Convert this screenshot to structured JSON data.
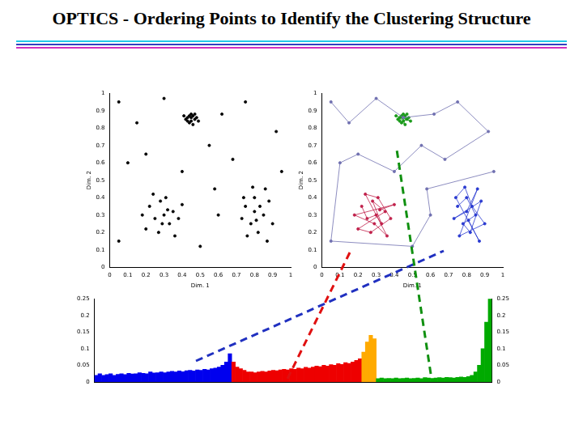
{
  "title": "OPTICS - Ordering Points to Identify the Clustering Structure",
  "chart_data": [
    {
      "type": "scatter",
      "xlabel": "Dim. 1",
      "ylabel": "Dim. 2",
      "xlim": [
        0,
        1
      ],
      "xticks": [
        0,
        0.1,
        0.2,
        0.3,
        0.4,
        0.5,
        0.6,
        0.7,
        0.8,
        0.9,
        1
      ],
      "ylim": [
        0,
        1
      ],
      "yticks": [
        0,
        0.1,
        0.2,
        0.3,
        0.4,
        0.5,
        0.6,
        0.7,
        0.8,
        0.9,
        1
      ],
      "grid": false,
      "series": [
        {
          "color": "#000000",
          "marker": "circle",
          "points": [
            [
              0.43,
              0.86
            ],
            [
              0.45,
              0.88
            ],
            [
              0.47,
              0.85
            ],
            [
              0.44,
              0.83
            ],
            [
              0.46,
              0.87
            ],
            [
              0.42,
              0.85
            ],
            [
              0.48,
              0.86
            ],
            [
              0.45,
              0.84
            ],
            [
              0.44,
              0.87
            ],
            [
              0.46,
              0.82
            ],
            [
              0.43,
              0.84
            ],
            [
              0.47,
              0.88
            ],
            [
              0.45,
              0.86
            ],
            [
              0.49,
              0.84
            ],
            [
              0.41,
              0.87
            ],
            [
              0.22,
              0.35
            ],
            [
              0.25,
              0.28
            ],
            [
              0.3,
              0.3
            ],
            [
              0.33,
              0.25
            ],
            [
              0.28,
              0.38
            ],
            [
              0.35,
              0.32
            ],
            [
              0.2,
              0.22
            ],
            [
              0.27,
              0.2
            ],
            [
              0.38,
              0.28
            ],
            [
              0.31,
              0.4
            ],
            [
              0.24,
              0.42
            ],
            [
              0.36,
              0.18
            ],
            [
              0.29,
              0.25
            ],
            [
              0.18,
              0.3
            ],
            [
              0.4,
              0.36
            ],
            [
              0.32,
              0.33
            ],
            [
              0.75,
              0.35
            ],
            [
              0.8,
              0.4
            ],
            [
              0.85,
              0.3
            ],
            [
              0.78,
              0.25
            ],
            [
              0.82,
              0.2
            ],
            [
              0.88,
              0.38
            ],
            [
              0.73,
              0.28
            ],
            [
              0.8,
              0.32
            ],
            [
              0.86,
              0.45
            ],
            [
              0.76,
              0.18
            ],
            [
              0.9,
              0.25
            ],
            [
              0.83,
              0.35
            ],
            [
              0.79,
              0.46
            ],
            [
              0.74,
              0.4
            ],
            [
              0.87,
              0.15
            ],
            [
              0.81,
              0.27
            ],
            [
              0.05,
              0.95
            ],
            [
              0.15,
              0.83
            ],
            [
              0.3,
              0.97
            ],
            [
              0.62,
              0.88
            ],
            [
              0.75,
              0.95
            ],
            [
              0.92,
              0.78
            ],
            [
              0.1,
              0.6
            ],
            [
              0.55,
              0.7
            ],
            [
              0.68,
              0.62
            ],
            [
              0.4,
              0.55
            ],
            [
              0.05,
              0.15
            ],
            [
              0.5,
              0.12
            ],
            [
              0.6,
              0.3
            ],
            [
              0.95,
              0.55
            ],
            [
              0.2,
              0.65
            ],
            [
              0.58,
              0.45
            ]
          ]
        }
      ]
    },
    {
      "type": "scatter",
      "xlabel": "Dim. 1",
      "ylabel": "Dim. 2",
      "xlim": [
        0,
        1
      ],
      "xticks": [
        0,
        0.1,
        0.2,
        0.3,
        0.4,
        0.5,
        0.6,
        0.7,
        0.8,
        0.9,
        1
      ],
      "ylim": [
        0,
        1
      ],
      "yticks": [
        0,
        0.1,
        0.2,
        0.3,
        0.4,
        0.5,
        0.6,
        0.7,
        0.8,
        0.9,
        1
      ],
      "grid": false,
      "series": [
        {
          "color": "#7070b0",
          "marker": "circle",
          "line_style": "solid",
          "points": [
            [
              0.05,
              0.95
            ],
            [
              0.15,
              0.83
            ],
            [
              0.3,
              0.97
            ],
            [
              0.45,
              0.86
            ],
            [
              0.62,
              0.88
            ],
            [
              0.75,
              0.95
            ],
            [
              0.92,
              0.78
            ],
            [
              0.68,
              0.62
            ],
            [
              0.55,
              0.7
            ],
            [
              0.4,
              0.55
            ],
            [
              0.2,
              0.65
            ],
            [
              0.1,
              0.6
            ],
            [
              0.05,
              0.15
            ],
            [
              0.5,
              0.12
            ],
            [
              0.6,
              0.3
            ],
            [
              0.58,
              0.45
            ],
            [
              0.95,
              0.55
            ]
          ]
        },
        {
          "color": "#1a9a1a",
          "marker": "circle",
          "line_style": "solid",
          "points": [
            [
              0.43,
              0.86
            ],
            [
              0.45,
              0.88
            ],
            [
              0.47,
              0.85
            ],
            [
              0.44,
              0.83
            ],
            [
              0.46,
              0.87
            ],
            [
              0.42,
              0.85
            ],
            [
              0.48,
              0.86
            ],
            [
              0.45,
              0.84
            ],
            [
              0.44,
              0.87
            ],
            [
              0.46,
              0.82
            ],
            [
              0.43,
              0.84
            ],
            [
              0.47,
              0.88
            ],
            [
              0.45,
              0.86
            ],
            [
              0.49,
              0.84
            ],
            [
              0.41,
              0.87
            ]
          ]
        },
        {
          "color": "#c0204a",
          "marker": "circle",
          "line_style": "solid",
          "points": [
            [
              0.22,
              0.35
            ],
            [
              0.25,
              0.28
            ],
            [
              0.3,
              0.3
            ],
            [
              0.33,
              0.25
            ],
            [
              0.28,
              0.38
            ],
            [
              0.35,
              0.32
            ],
            [
              0.2,
              0.22
            ],
            [
              0.27,
              0.2
            ],
            [
              0.38,
              0.28
            ],
            [
              0.31,
              0.4
            ],
            [
              0.24,
              0.42
            ],
            [
              0.36,
              0.18
            ],
            [
              0.29,
              0.25
            ],
            [
              0.18,
              0.3
            ],
            [
              0.4,
              0.36
            ],
            [
              0.32,
              0.33
            ]
          ]
        },
        {
          "color": "#2a3ad0",
          "marker": "circle",
          "line_style": "solid",
          "points": [
            [
              0.75,
              0.35
            ],
            [
              0.8,
              0.4
            ],
            [
              0.85,
              0.3
            ],
            [
              0.78,
              0.25
            ],
            [
              0.82,
              0.2
            ],
            [
              0.88,
              0.38
            ],
            [
              0.73,
              0.28
            ],
            [
              0.8,
              0.32
            ],
            [
              0.86,
              0.45
            ],
            [
              0.76,
              0.18
            ],
            [
              0.9,
              0.25
            ],
            [
              0.83,
              0.35
            ],
            [
              0.79,
              0.46
            ],
            [
              0.74,
              0.4
            ],
            [
              0.87,
              0.15
            ],
            [
              0.81,
              0.27
            ]
          ]
        }
      ]
    },
    {
      "type": "bar",
      "tick_labels": "y",
      "grid": false,
      "ylim": [
        0,
        0.25
      ],
      "yticks": [
        0,
        0.05,
        0.1,
        0.15,
        0.2,
        0.25
      ],
      "y2lim": [
        0,
        0.25
      ],
      "y2ticks": [
        0,
        0.05,
        0.1,
        0.15,
        0.2,
        0.25
      ],
      "categories": [
        null,
        null,
        null,
        null,
        null,
        null,
        null,
        null,
        null,
        null,
        null,
        null,
        null,
        null,
        null,
        null,
        null,
        null,
        null,
        null,
        null,
        null,
        null,
        null,
        null,
        null,
        null,
        null,
        null,
        null,
        null,
        null,
        null,
        null,
        null,
        null,
        null,
        null,
        null,
        null,
        null,
        null,
        null,
        null,
        null,
        null,
        null,
        null,
        null,
        null,
        null,
        null,
        null,
        null,
        null,
        null,
        null,
        null,
        null,
        null,
        null,
        null,
        null,
        null,
        null,
        null,
        null,
        null,
        null,
        null,
        null,
        null,
        null,
        null,
        null,
        null,
        null,
        null,
        null,
        null,
        null,
        null,
        null,
        null,
        null,
        null,
        null,
        null,
        null,
        null,
        null,
        null,
        null,
        null,
        null,
        null,
        null,
        null,
        null,
        null,
        null,
        null,
        null,
        null,
        null,
        null,
        null,
        null,
        null,
        null
      ],
      "values": [
        0.02,
        0.025,
        0.02,
        0.022,
        0.025,
        0.02,
        0.023,
        0.025,
        0.022,
        0.026,
        0.024,
        0.025,
        0.028,
        0.026,
        0.025,
        0.03,
        0.027,
        0.028,
        0.03,
        0.028,
        0.03,
        0.032,
        0.03,
        0.033,
        0.031,
        0.034,
        0.035,
        0.033,
        0.036,
        0.035,
        0.038,
        0.036,
        0.04,
        0.042,
        0.045,
        0.05,
        0.06,
        0.085,
        0.06,
        0.045,
        0.04,
        0.035,
        0.03,
        0.03,
        0.028,
        0.03,
        0.032,
        0.03,
        0.033,
        0.035,
        0.034,
        0.036,
        0.038,
        0.036,
        0.04,
        0.038,
        0.042,
        0.04,
        0.044,
        0.042,
        0.045,
        0.048,
        0.046,
        0.05,
        0.048,
        0.052,
        0.05,
        0.055,
        0.053,
        0.058,
        0.056,
        0.06,
        0.065,
        0.07,
        0.09,
        0.12,
        0.14,
        0.13,
        0.01,
        0.012,
        0.01,
        0.011,
        0.01,
        0.012,
        0.01,
        0.011,
        0.012,
        0.01,
        0.011,
        0.012,
        0.01,
        0.013,
        0.012,
        0.011,
        0.012,
        0.013,
        0.012,
        0.014,
        0.013,
        0.012,
        0.014,
        0.015,
        0.014,
        0.016,
        0.02,
        0.03,
        0.05,
        0.1,
        0.18,
        0.25
      ],
      "colors": [
        "#00e",
        "#00e",
        "#00e",
        "#00e",
        "#00e",
        "#00e",
        "#00e",
        "#00e",
        "#00e",
        "#00e",
        "#00e",
        "#00e",
        "#00e",
        "#00e",
        "#00e",
        "#00e",
        "#00e",
        "#00e",
        "#00e",
        "#00e",
        "#00e",
        "#00e",
        "#00e",
        "#00e",
        "#00e",
        "#00e",
        "#00e",
        "#00e",
        "#00e",
        "#00e",
        "#00e",
        "#00e",
        "#00e",
        "#00e",
        "#00e",
        "#00e",
        "#00e",
        "#00e",
        "#e00",
        "#e00",
        "#e00",
        "#e00",
        "#e00",
        "#e00",
        "#e00",
        "#e00",
        "#e00",
        "#e00",
        "#e00",
        "#e00",
        "#e00",
        "#e00",
        "#e00",
        "#e00",
        "#e00",
        "#e00",
        "#e00",
        "#e00",
        "#e00",
        "#e00",
        "#e00",
        "#e00",
        "#e00",
        "#e00",
        "#e00",
        "#e00",
        "#e00",
        "#e00",
        "#e00",
        "#e00",
        "#e00",
        "#e00",
        "#e00",
        "#e00",
        "#fa0",
        "#fa0",
        "#fa0",
        "#fa0",
        "#0a0",
        "#0a0",
        "#0a0",
        "#0a0",
        "#0a0",
        "#0a0",
        "#0a0",
        "#0a0",
        "#0a0",
        "#0a0",
        "#0a0",
        "#0a0",
        "#0a0",
        "#0a0",
        "#0a0",
        "#0a0",
        "#0a0",
        "#0a0",
        "#0a0",
        "#0a0",
        "#0a0",
        "#0a0",
        "#0a0",
        "#0a0",
        "#0a0",
        "#0a0",
        "#0a0",
        "#0a0",
        "#0a0",
        "#0a0",
        "#0a0",
        "#0a0"
      ]
    }
  ]
}
